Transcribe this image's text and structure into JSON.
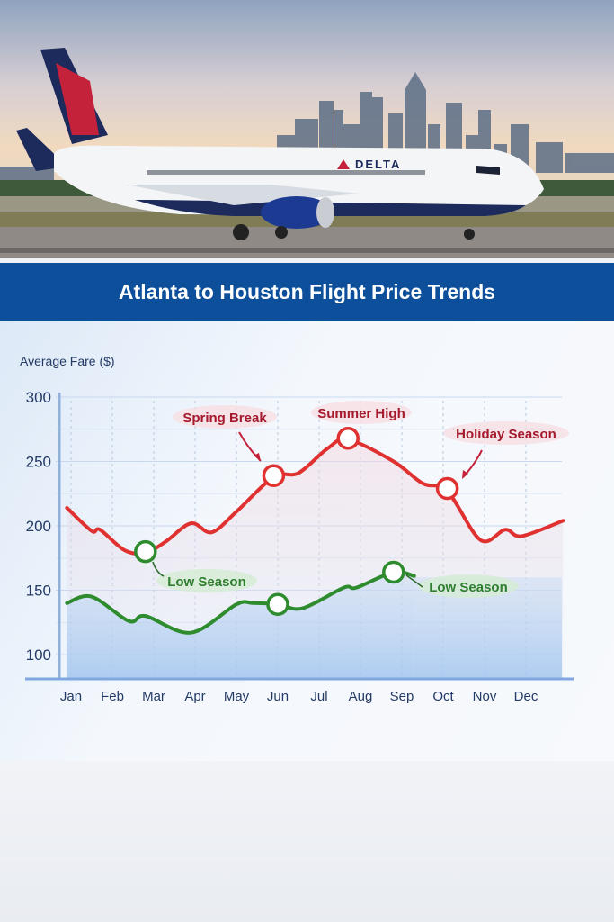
{
  "photo": {
    "logo_text": "DELTA"
  },
  "banner": {
    "title": "Atlanta to Houston Flight Price Trends"
  },
  "colors": {
    "banner": "#0d4f9a",
    "high_line": "#e03131",
    "low_line": "#2e8b2e",
    "marker_red": "#e03131",
    "marker_green": "#2e8b2e",
    "axis_text": "#233a66"
  },
  "chart_data": {
    "type": "line",
    "ylabel": "Average Fare ($)",
    "xlabel": "",
    "categories": [
      "Jan",
      "Feb",
      "Mar",
      "Apr",
      "May",
      "Jun",
      "Jul",
      "Aug",
      "Sep",
      "Oct",
      "Nov",
      "Dec"
    ],
    "yticks": [
      100,
      150,
      200,
      250,
      300
    ],
    "ylim": [
      81,
      305
    ],
    "grid": true,
    "series": [
      {
        "color": "#e03131",
        "points": [
          [
            -0.1,
            214
          ],
          [
            0.5,
            196
          ],
          [
            0.7,
            197
          ],
          [
            1.3,
            181
          ],
          [
            1.8,
            179
          ],
          [
            2.3,
            188
          ],
          [
            2.9,
            202
          ],
          [
            3.4,
            195
          ],
          [
            4.0,
            211
          ],
          [
            4.9,
            238
          ],
          [
            5.5,
            241
          ],
          [
            6.2,
            260
          ],
          [
            6.7,
            267
          ],
          [
            7.8,
            250
          ],
          [
            8.5,
            233
          ],
          [
            9.1,
            227
          ],
          [
            9.9,
            189
          ],
          [
            10.5,
            197
          ],
          [
            10.9,
            192
          ],
          [
            11.9,
            204
          ]
        ]
      },
      {
        "color": "#2e8b2e",
        "points": [
          [
            -0.1,
            140
          ],
          [
            0.5,
            145
          ],
          [
            1.4,
            126
          ],
          [
            1.8,
            130
          ],
          [
            2.9,
            117
          ],
          [
            4.0,
            139
          ],
          [
            4.4,
            140
          ],
          [
            5.0,
            139
          ],
          [
            5.6,
            136
          ],
          [
            6.6,
            152
          ],
          [
            6.9,
            152
          ],
          [
            7.8,
            164
          ],
          [
            8.3,
            161
          ]
        ]
      }
    ],
    "markers": [
      {
        "x": 4.9,
        "y": 239,
        "color": "red"
      },
      {
        "x": 6.7,
        "y": 268,
        "color": "red"
      },
      {
        "x": 9.1,
        "y": 229,
        "color": "red"
      },
      {
        "x": 1.8,
        "y": 180,
        "color": "green"
      },
      {
        "x": 5.0,
        "y": 139,
        "color": "green"
      },
      {
        "x": 7.8,
        "y": 164,
        "color": "green"
      }
    ],
    "annotations": [
      "Spring Break",
      "Summer High",
      "Holiday Season",
      "Low Season",
      "Low Season"
    ]
  }
}
